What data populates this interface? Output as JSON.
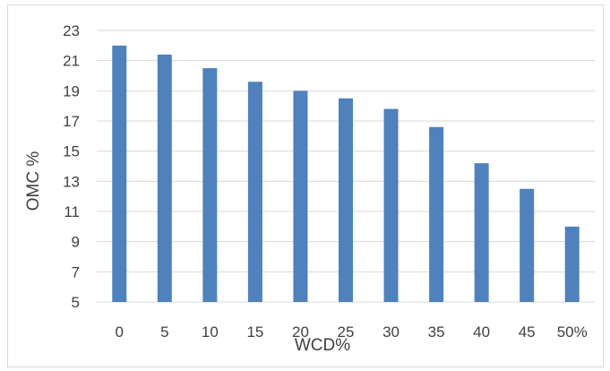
{
  "chart_data": {
    "type": "bar",
    "categories": [
      "0",
      "5",
      "10",
      "15",
      "20",
      "25",
      "30",
      "35",
      "40",
      "45",
      "50%"
    ],
    "values": [
      22.0,
      21.4,
      20.5,
      19.6,
      19.0,
      18.5,
      17.8,
      16.6,
      14.2,
      12.5,
      10.0
    ],
    "xlabel": "WCD%",
    "ylabel": "OMC %",
    "ylim": [
      5,
      23
    ],
    "yticks": [
      5,
      7,
      9,
      11,
      13,
      15,
      17,
      19,
      21,
      23
    ],
    "grid": true,
    "legend": "none",
    "bar_color": "#4f81bd",
    "grid_color": "#d9d9d9"
  }
}
